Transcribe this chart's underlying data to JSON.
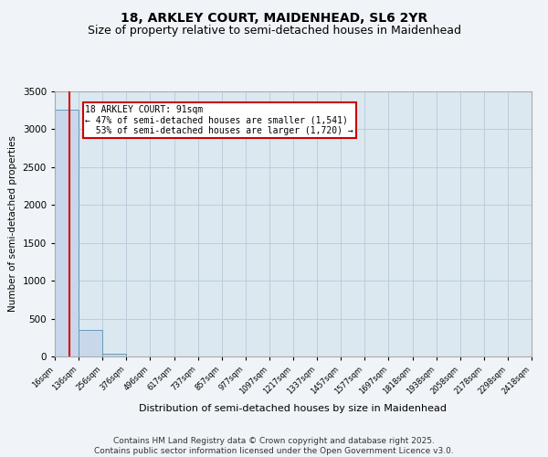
{
  "title": "18, ARKLEY COURT, MAIDENHEAD, SL6 2YR",
  "subtitle": "Size of property relative to semi-detached houses in Maidenhead",
  "xlabel": "Distribution of semi-detached houses by size in Maidenhead",
  "ylabel": "Number of semi-detached properties",
  "bin_edges": [
    16,
    136,
    256,
    376,
    496,
    617,
    737,
    857,
    977,
    1097,
    1217,
    1337,
    1457,
    1577,
    1697,
    1818,
    1938,
    2058,
    2178,
    2298,
    2418
  ],
  "bin_counts": [
    3261,
    350,
    40,
    5,
    2,
    1,
    0,
    0,
    0,
    0,
    0,
    0,
    0,
    0,
    0,
    0,
    0,
    0,
    0,
    0
  ],
  "bar_color": "#c8d8ea",
  "bar_edgecolor": "#6699bb",
  "property_size": 91,
  "property_label": "18 ARKLEY COURT: 91sqm",
  "pct_smaller": 47,
  "n_smaller": 1541,
  "pct_larger": 53,
  "n_larger": 1720,
  "redline_color": "#dd0000",
  "annotation_box_color": "#cc0000",
  "ylim": [
    0,
    3500
  ],
  "background_color": "#f0f4f8",
  "plot_bg_color": "#dce8f0",
  "grid_color": "#b8c8d8",
  "title_fontsize": 10,
  "subtitle_fontsize": 9,
  "footer_text": "Contains HM Land Registry data © Crown copyright and database right 2025.\nContains public sector information licensed under the Open Government Licence v3.0.",
  "footer_fontsize": 6.5
}
